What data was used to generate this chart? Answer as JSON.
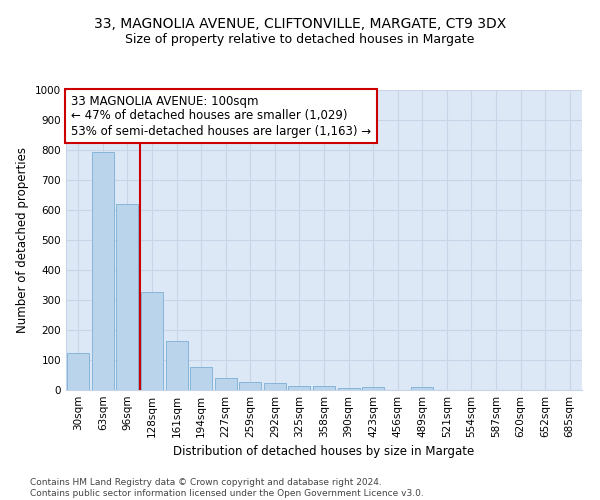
{
  "title1": "33, MAGNOLIA AVENUE, CLIFTONVILLE, MARGATE, CT9 3DX",
  "title2": "Size of property relative to detached houses in Margate",
  "xlabel": "Distribution of detached houses by size in Margate",
  "ylabel": "Number of detached properties",
  "categories": [
    "30sqm",
    "63sqm",
    "96sqm",
    "128sqm",
    "161sqm",
    "194sqm",
    "227sqm",
    "259sqm",
    "292sqm",
    "325sqm",
    "358sqm",
    "390sqm",
    "423sqm",
    "456sqm",
    "489sqm",
    "521sqm",
    "554sqm",
    "587sqm",
    "620sqm",
    "652sqm",
    "685sqm"
  ],
  "values": [
    125,
    795,
    620,
    328,
    162,
    78,
    40,
    28,
    25,
    15,
    15,
    7,
    10,
    0,
    9,
    0,
    0,
    0,
    0,
    0,
    0
  ],
  "bar_color": "#bad4ec",
  "bar_edge_color": "#7bafd4",
  "vline_x": 2.5,
  "vline_color": "#cc0000",
  "annotation_text": "33 MAGNOLIA AVENUE: 100sqm\n← 47% of detached houses are smaller (1,029)\n53% of semi-detached houses are larger (1,163) →",
  "annotation_box_color": "white",
  "annotation_box_edge": "#cc0000",
  "ylim": [
    0,
    1000
  ],
  "yticks": [
    0,
    100,
    200,
    300,
    400,
    500,
    600,
    700,
    800,
    900,
    1000
  ],
  "grid_color": "#c8d4e8",
  "bg_color": "#dce8f5",
  "footer": "Contains HM Land Registry data © Crown copyright and database right 2024.\nContains public sector information licensed under the Open Government Licence v3.0.",
  "title1_fontsize": 10,
  "title2_fontsize": 9,
  "xlabel_fontsize": 8.5,
  "ylabel_fontsize": 8.5,
  "tick_fontsize": 7.5,
  "annotation_fontsize": 8.5,
  "footer_fontsize": 6.5
}
